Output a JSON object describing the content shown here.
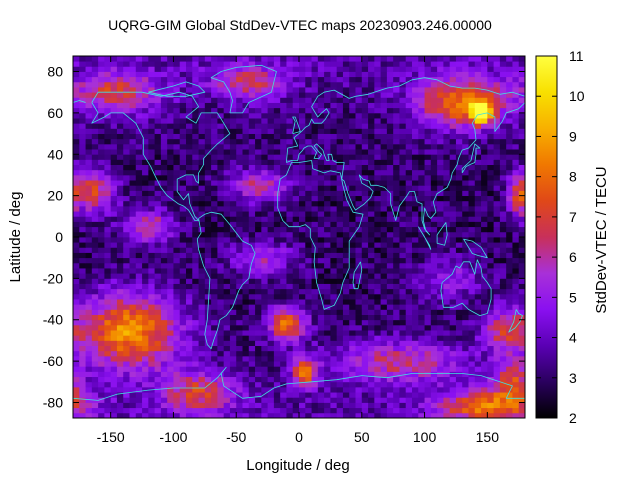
{
  "title": "UQRG-GIM Global StdDev-VTEC maps 20230903.246.00000",
  "chart_data": {
    "type": "heatmap",
    "title": "UQRG-GIM Global StdDev-VTEC maps 20230903.246.00000",
    "xlabel": "Longitude / deg",
    "ylabel": "Latitude / deg",
    "colorbar_label": "StdDev-VTEC / TECU",
    "xlim": [
      -180,
      180
    ],
    "ylim": [
      -87.5,
      87.5
    ],
    "clim": [
      2,
      11
    ],
    "x_ticks": [
      -150,
      -100,
      -50,
      0,
      50,
      100,
      150
    ],
    "x_tick_labels": [
      "-150",
      "-100",
      "-50",
      "0",
      "50",
      "100",
      "150"
    ],
    "y_ticks": [
      -80,
      -60,
      -40,
      -20,
      0,
      20,
      40,
      60,
      80
    ],
    "y_tick_labels": [
      "-80",
      "-60",
      "-40",
      "-20",
      "0",
      "20",
      "40",
      "60",
      "80"
    ],
    "colorbar_ticks": [
      2,
      3,
      4,
      5,
      6,
      7,
      8,
      9,
      10,
      11
    ],
    "colorbar_tick_labels": [
      "2",
      "3",
      "4",
      "5",
      "6",
      "7",
      "8",
      "9",
      "10",
      "11"
    ],
    "colormap": [
      "#000000",
      "#2a005e",
      "#5a00b4",
      "#8a10f0",
      "#a830d8",
      "#c8305a",
      "#e04818",
      "#f07800",
      "#f8b000",
      "#f8e000",
      "#ffff40"
    ],
    "coastline_color": "#40e0e0",
    "lon_step": 5,
    "lat_step": 2.5,
    "features": [
      {
        "lon": -145,
        "lat": 70,
        "dlon": 35,
        "dlat": 10,
        "v": 6.5
      },
      {
        "lon": -40,
        "lat": 75,
        "dlon": 30,
        "dlat": 8,
        "v": 6.2
      },
      {
        "lon": 130,
        "lat": 65,
        "dlon": 35,
        "dlat": 12,
        "v": 8.0
      },
      {
        "lon": 145,
        "lat": 60,
        "dlon": 8,
        "dlat": 5,
        "v": 10.0
      },
      {
        "lon": -165,
        "lat": 22,
        "dlon": 18,
        "dlat": 10,
        "v": 7.0
      },
      {
        "lon": -120,
        "lat": 5,
        "dlon": 20,
        "dlat": 8,
        "v": 6.5
      },
      {
        "lon": 175,
        "lat": 20,
        "dlon": 8,
        "dlat": 12,
        "v": 6.5
      },
      {
        "lon": -135,
        "lat": -45,
        "dlon": 40,
        "dlat": 18,
        "v": 8.5
      },
      {
        "lon": -10,
        "lat": -42,
        "dlon": 15,
        "dlat": 8,
        "v": 8.0
      },
      {
        "lon": 5,
        "lat": -65,
        "dlon": 10,
        "dlat": 7,
        "v": 8.0
      },
      {
        "lon": -80,
        "lat": -75,
        "dlon": 30,
        "dlat": 10,
        "v": 6.5
      },
      {
        "lon": 80,
        "lat": -60,
        "dlon": 50,
        "dlat": 10,
        "v": 6.0
      },
      {
        "lon": 150,
        "lat": -82,
        "dlon": 40,
        "dlat": 8,
        "v": 7.5
      },
      {
        "lon": 165,
        "lat": -45,
        "dlon": 18,
        "dlat": 10,
        "v": 6.5
      },
      {
        "lon": -30,
        "lat": 25,
        "dlon": 25,
        "dlat": 8,
        "v": 6.0
      },
      {
        "lon": -30,
        "lat": -10,
        "dlon": 25,
        "dlat": 8,
        "v": 5.5
      },
      {
        "lon": 120,
        "lat": -20,
        "dlon": 25,
        "dlat": 10,
        "v": 5.0
      },
      {
        "lon": 170,
        "lat": -70,
        "dlon": 15,
        "dlat": 10,
        "v": 6.5
      }
    ]
  }
}
